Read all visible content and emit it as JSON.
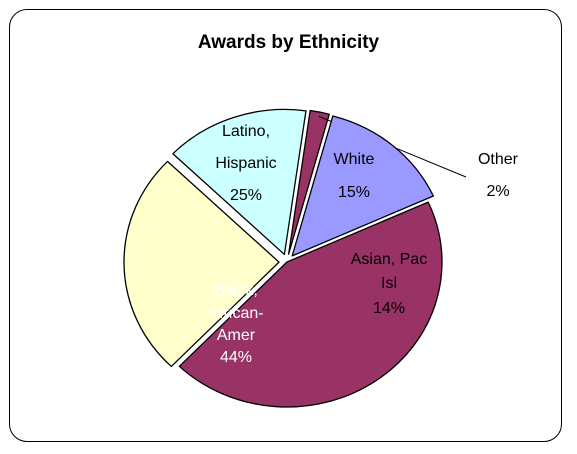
{
  "chart_data": {
    "type": "pie",
    "title": "Awards by Ethnicity",
    "slices": [
      {
        "name": "Latino, Hispanic",
        "value": 25,
        "label_lines": [
          "Latino,",
          "Hispanic",
          "25%"
        ],
        "color": "#FFFFCC",
        "label_color": "#000000",
        "exploded": true
      },
      {
        "name": "White",
        "value": 15,
        "label_lines": [
          "White",
          "15%"
        ],
        "color": "#CCFFFF",
        "label_color": "#000000",
        "exploded": true
      },
      {
        "name": "Other",
        "value": 2,
        "label_lines": [
          "Other",
          "2%"
        ],
        "color": "#993366",
        "label_color": "#000000",
        "exploded": true,
        "external_label": true
      },
      {
        "name": "Asian, Pac Isl",
        "value": 14,
        "label_lines": [
          "Asian, Pac",
          "Isl",
          "14%"
        ],
        "color": "#9999FF",
        "label_color": "#000000",
        "exploded": true
      },
      {
        "name": "Black, African-Amer",
        "value": 44,
        "label_lines": [
          "Black,",
          "African-",
          "Amer",
          "44%"
        ],
        "color": "#993366",
        "label_color": "#FFFFFF",
        "exploded": false
      }
    ]
  }
}
